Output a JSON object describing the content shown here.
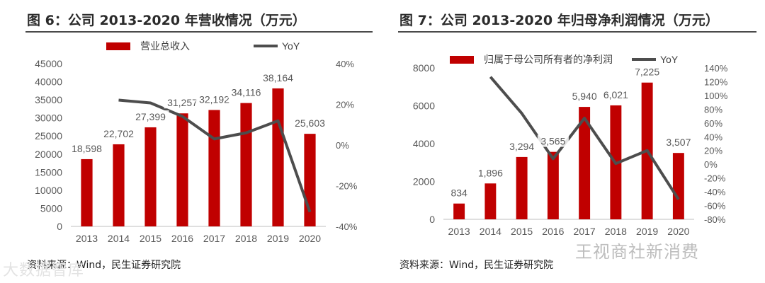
{
  "panels": [
    {
      "title": "图 6：公司 2013-2020 年营收情况（万元）",
      "source": "资料来源：Wind，民生证券研究院"
    },
    {
      "title": "图 7：公司 2013-2020 年归母净利润情况（万元）",
      "source": "资料来源：Wind，民生证券研究院"
    }
  ],
  "watermarks": {
    "right": "王视商社新消费",
    "left": "大数据智库"
  },
  "colors": {
    "bar": "#C00000",
    "line": "#4D4D4D",
    "axis_text": "#595959"
  },
  "chart_data": [
    {
      "type": "bar",
      "title": "",
      "categories": [
        "2013",
        "2014",
        "2015",
        "2016",
        "2017",
        "2018",
        "2019",
        "2020"
      ],
      "series": [
        {
          "name": "营业总收入",
          "type": "bar",
          "axis": "left",
          "values": [
            18598,
            22702,
            27399,
            31257,
            32192,
            34116,
            38164,
            25603
          ]
        },
        {
          "name": "YoY",
          "type": "line",
          "axis": "right",
          "values": [
            null,
            22.1,
            20.7,
            14.1,
            3.0,
            6.0,
            11.9,
            -32.9
          ]
        }
      ],
      "data_labels": [
        "18,598",
        "22,702",
        "27,399",
        "31,257",
        "32,192",
        "34,116",
        "38,164",
        "25,603"
      ],
      "y_left": {
        "min": 0,
        "max": 45000,
        "step": 5000,
        "ticks": [
          "0",
          "5000",
          "10000",
          "15000",
          "20000",
          "25000",
          "30000",
          "35000",
          "40000",
          "45000"
        ]
      },
      "y_right": {
        "min": -40,
        "max": 40,
        "step": 20,
        "ticks": [
          "-40%",
          "-20%",
          "0%",
          "20%",
          "40%"
        ]
      },
      "legend": "top",
      "grid": false
    },
    {
      "type": "bar",
      "title": "",
      "categories": [
        "2013",
        "2014",
        "2015",
        "2016",
        "2017",
        "2018",
        "2019",
        "2020"
      ],
      "series": [
        {
          "name": "归属于母公司所有者的净利润",
          "type": "bar",
          "axis": "left",
          "values": [
            834,
            1896,
            3294,
            3565,
            5940,
            6021,
            7225,
            3507
          ]
        },
        {
          "name": "YoY",
          "type": "line",
          "axis": "right",
          "values": [
            null,
            127,
            74,
            8,
            67,
            1,
            20,
            -51
          ]
        }
      ],
      "data_labels": [
        "834",
        "1,896",
        "3,294",
        "3,565",
        "5,940",
        "6,021",
        "7,225",
        "3,507"
      ],
      "y_left": {
        "min": 0,
        "max": 8000,
        "step": 2000,
        "ticks": [
          "0",
          "2000",
          "4000",
          "6000",
          "8000"
        ]
      },
      "y_right": {
        "min": -80,
        "max": 140,
        "step": 20,
        "ticks": [
          "-80%",
          "-60%",
          "-40%",
          "-20%",
          "0%",
          "20%",
          "40%",
          "60%",
          "80%",
          "100%",
          "120%",
          "140%"
        ]
      },
      "legend": "top",
      "grid": false
    }
  ]
}
